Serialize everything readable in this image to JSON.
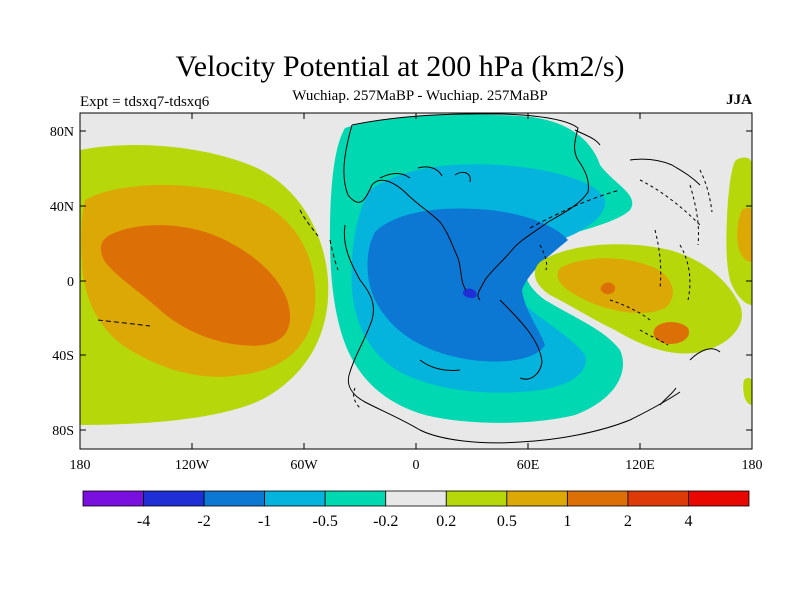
{
  "title": "Velocity Potential at 200 hPa (km2/s)",
  "subtitle": "Wuchiap. 257MaBP - Wuchiap. 257MaBP",
  "experiment": "Expt = tdsxq7-tdsxq6",
  "season": "JJA",
  "chart_data": {
    "type": "contour_map",
    "variable": "velocity potential difference",
    "level": "200 hPa",
    "units": "km2/s",
    "x_ticks": [
      "180",
      "120W",
      "60W",
      "0",
      "60E",
      "120E",
      "180"
    ],
    "y_ticks": [
      "80N",
      "40N",
      "0",
      "40S",
      "80S"
    ],
    "xlim": [
      -180,
      180
    ],
    "ylim": [
      -90,
      90
    ],
    "colorbar": {
      "labels": [
        "-4",
        "-2",
        "-1",
        "-0.5",
        "-0.2",
        "0.2",
        "0.5",
        "1",
        "2",
        "4"
      ],
      "colors": [
        "#7a10dd",
        "#1f2fd6",
        "#0c78d4",
        "#05b4dd",
        "#00d8b2",
        "#e8e8e8",
        "#b6d80a",
        "#dca806",
        "#dc7006",
        "#dc3a06",
        "#e80800"
      ]
    }
  }
}
